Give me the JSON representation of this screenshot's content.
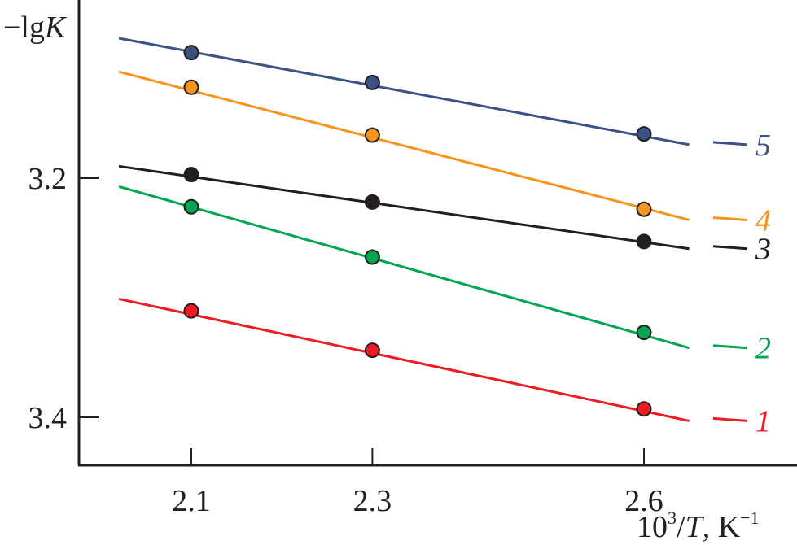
{
  "chart_data": {
    "type": "line",
    "ylabel": "−lg",
    "ylabel_italic": "K",
    "xlabel_parts": {
      "base": "10",
      "exp": "3",
      "mid": "/",
      "var": "T",
      "unit": ", K",
      "unit_exp": "−1"
    },
    "x_ticks": [
      2.1,
      2.3,
      2.6
    ],
    "x_tick_labels": [
      "2.1",
      "2.3",
      "2.6"
    ],
    "y_ticks": [
      3.2,
      3.4
    ],
    "y_tick_labels": [
      "3.2",
      "3.4"
    ],
    "y_inverted": true,
    "grid": false,
    "legend": "right, line-end labels",
    "x": [
      2.1,
      2.3,
      2.6
    ],
    "fit_x_range": [
      2.02,
      2.65
    ],
    "series": [
      {
        "name": "1",
        "color": "#ed1c24",
        "values": [
          3.311,
          3.344,
          3.393
        ],
        "fit": [
          3.301,
          3.403
        ]
      },
      {
        "name": "2",
        "color": "#00a650",
        "values": [
          3.224,
          3.266,
          3.329
        ],
        "fit": [
          3.207,
          3.342
        ]
      },
      {
        "name": "3",
        "color": "#231f20",
        "values": [
          3.197,
          3.22,
          3.253
        ],
        "fit": [
          3.19,
          3.259
        ]
      },
      {
        "name": "4",
        "color": "#f7941d",
        "values": [
          3.124,
          3.164,
          3.226
        ],
        "fit": [
          3.111,
          3.235
        ]
      },
      {
        "name": "5",
        "color": "#3a5285",
        "values": [
          3.095,
          3.12,
          3.163
        ],
        "fit": [
          3.083,
          3.172
        ]
      }
    ]
  }
}
